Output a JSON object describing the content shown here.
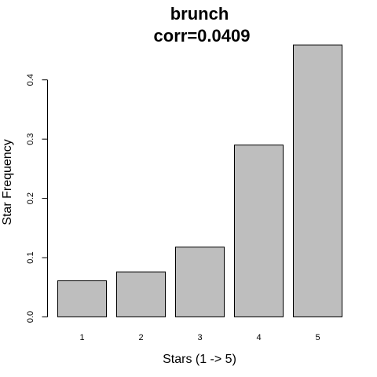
{
  "chart_data": {
    "type": "bar",
    "title": "brunch",
    "subtitle": "corr=0.0409",
    "xlabel": "Stars (1 -> 5)",
    "ylabel": "Star Frequency",
    "categories": [
      "1",
      "2",
      "3",
      "4",
      "5"
    ],
    "values": [
      0.061,
      0.076,
      0.118,
      0.29,
      0.459
    ],
    "ylim": [
      0,
      0.45
    ],
    "yticks": [
      0.0,
      0.1,
      0.2,
      0.3,
      0.4
    ],
    "ytick_labels": [
      "0.0",
      "0.1",
      "0.2",
      "0.3",
      "0.4"
    ],
    "grid": false,
    "colors": {
      "bar_fill": "#bebebe",
      "bar_stroke": "#000000"
    }
  }
}
